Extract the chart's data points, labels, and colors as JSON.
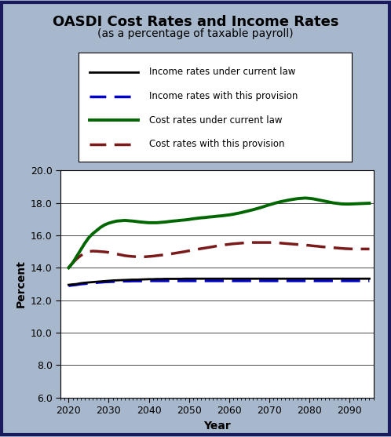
{
  "title": "OASDI Cost Rates and Income Rates",
  "subtitle": "(as a percentage of taxable payroll)",
  "xlabel": "Year",
  "ylabel": "Percent",
  "ylim": [
    6.0,
    20.0
  ],
  "yticks": [
    6.0,
    8.0,
    10.0,
    12.0,
    14.0,
    16.0,
    18.0,
    20.0
  ],
  "xlim": [
    2018,
    2096
  ],
  "xticks": [
    2020,
    2030,
    2040,
    2050,
    2060,
    2070,
    2080,
    2090
  ],
  "background_color": "#a8b8cc",
  "plot_bg_color": "#ffffff",
  "legend_bg": "#ffffff",
  "outer_border_color": "#1a1a5e",
  "years": [
    2020,
    2021,
    2022,
    2023,
    2024,
    2025,
    2026,
    2027,
    2028,
    2029,
    2030,
    2031,
    2032,
    2033,
    2034,
    2035,
    2036,
    2037,
    2038,
    2039,
    2040,
    2041,
    2042,
    2043,
    2044,
    2045,
    2046,
    2047,
    2048,
    2049,
    2050,
    2051,
    2052,
    2053,
    2054,
    2055,
    2056,
    2057,
    2058,
    2059,
    2060,
    2061,
    2062,
    2063,
    2064,
    2065,
    2066,
    2067,
    2068,
    2069,
    2070,
    2071,
    2072,
    2073,
    2074,
    2075,
    2076,
    2077,
    2078,
    2079,
    2080,
    2081,
    2082,
    2083,
    2084,
    2085,
    2086,
    2087,
    2088,
    2089,
    2090,
    2091,
    2092,
    2093,
    2094,
    2095
  ],
  "income_current_law": [
    12.95,
    12.98,
    13.0,
    13.05,
    13.08,
    13.1,
    13.12,
    13.14,
    13.16,
    13.18,
    13.2,
    13.22,
    13.23,
    13.24,
    13.25,
    13.26,
    13.27,
    13.27,
    13.28,
    13.29,
    13.3,
    13.3,
    13.31,
    13.31,
    13.32,
    13.32,
    13.32,
    13.32,
    13.32,
    13.33,
    13.33,
    13.33,
    13.33,
    13.33,
    13.33,
    13.33,
    13.33,
    13.33,
    13.33,
    13.33,
    13.33,
    13.33,
    13.33,
    13.33,
    13.33,
    13.33,
    13.33,
    13.33,
    13.33,
    13.33,
    13.33,
    13.33,
    13.33,
    13.33,
    13.33,
    13.33,
    13.33,
    13.33,
    13.33,
    13.33,
    13.33,
    13.33,
    13.33,
    13.33,
    13.33,
    13.33,
    13.33,
    13.33,
    13.33,
    13.33,
    13.33,
    13.33,
    13.33,
    13.33,
    13.33,
    13.33
  ],
  "income_provision": [
    12.9,
    12.93,
    12.96,
    13.0,
    13.02,
    13.05,
    13.07,
    13.09,
    13.11,
    13.13,
    13.14,
    13.15,
    13.16,
    13.17,
    13.18,
    13.18,
    13.19,
    13.19,
    13.19,
    13.2,
    13.2,
    13.2,
    13.2,
    13.2,
    13.2,
    13.2,
    13.2,
    13.2,
    13.2,
    13.2,
    13.2,
    13.2,
    13.2,
    13.2,
    13.2,
    13.2,
    13.2,
    13.2,
    13.2,
    13.2,
    13.2,
    13.2,
    13.2,
    13.2,
    13.2,
    13.2,
    13.2,
    13.2,
    13.2,
    13.2,
    13.2,
    13.2,
    13.2,
    13.2,
    13.2,
    13.2,
    13.2,
    13.2,
    13.2,
    13.2,
    13.2,
    13.2,
    13.2,
    13.2,
    13.2,
    13.2,
    13.2,
    13.2,
    13.2,
    13.2,
    13.2,
    13.2,
    13.2,
    13.2,
    13.2,
    13.2
  ],
  "cost_current_law": [
    14.0,
    14.3,
    14.7,
    15.1,
    15.5,
    15.85,
    16.1,
    16.3,
    16.5,
    16.65,
    16.75,
    16.82,
    16.88,
    16.9,
    16.92,
    16.9,
    16.88,
    16.85,
    16.82,
    16.8,
    16.78,
    16.78,
    16.78,
    16.8,
    16.82,
    16.85,
    16.88,
    16.9,
    16.93,
    16.95,
    16.98,
    17.02,
    17.05,
    17.08,
    17.1,
    17.13,
    17.15,
    17.18,
    17.2,
    17.23,
    17.26,
    17.3,
    17.35,
    17.4,
    17.46,
    17.52,
    17.58,
    17.65,
    17.72,
    17.8,
    17.88,
    17.95,
    18.02,
    18.08,
    18.13,
    18.18,
    18.22,
    18.26,
    18.28,
    18.3,
    18.28,
    18.25,
    18.2,
    18.15,
    18.1,
    18.05,
    18.0,
    17.97,
    17.94,
    17.93,
    17.93,
    17.94,
    17.95,
    17.96,
    17.97,
    17.98
  ],
  "cost_provision": [
    14.02,
    14.3,
    14.55,
    14.75,
    14.9,
    15.0,
    15.03,
    15.02,
    15.0,
    14.98,
    14.95,
    14.9,
    14.85,
    14.8,
    14.75,
    14.72,
    14.7,
    14.68,
    14.68,
    14.68,
    14.7,
    14.72,
    14.75,
    14.78,
    14.8,
    14.85,
    14.88,
    14.92,
    14.96,
    15.0,
    15.05,
    15.1,
    15.14,
    15.18,
    15.22,
    15.26,
    15.3,
    15.35,
    15.38,
    15.42,
    15.45,
    15.48,
    15.5,
    15.52,
    15.54,
    15.55,
    15.56,
    15.56,
    15.56,
    15.56,
    15.56,
    15.55,
    15.54,
    15.52,
    15.5,
    15.48,
    15.46,
    15.44,
    15.42,
    15.4,
    15.38,
    15.35,
    15.33,
    15.3,
    15.28,
    15.26,
    15.24,
    15.22,
    15.2,
    15.18,
    15.17,
    15.16,
    15.16,
    15.16,
    15.16,
    15.16
  ],
  "line_colors": {
    "income_current_law": "#000000",
    "income_provision": "#0000cc",
    "cost_current_law": "#006600",
    "cost_provision": "#7b1a1a"
  },
  "line_widths": {
    "income_current_law": 2.0,
    "income_provision": 2.5,
    "cost_current_law": 2.8,
    "cost_provision": 2.5
  },
  "legend_labels": [
    "Income rates under current law",
    "Income rates with this provision",
    "Cost rates under current law",
    "Cost rates with this provision"
  ]
}
